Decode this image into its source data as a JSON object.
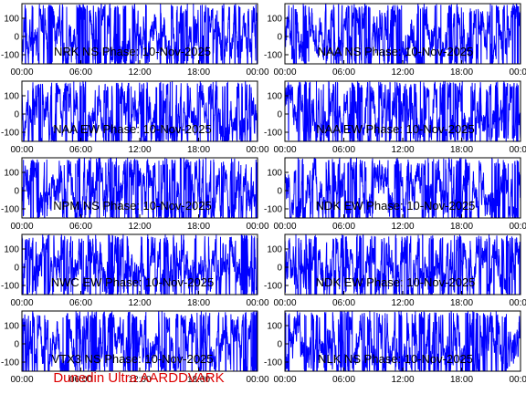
{
  "figure": {
    "credit": "Dunedin Ultra AARDDVARK",
    "credit_color": "#dd0000",
    "trace_color": "#0000ff",
    "axis_color": "#000000"
  },
  "chart_data": [
    {
      "type": "line",
      "title": "NRK NS Phase: 10-Nov-2025",
      "xlabel": "",
      "ylabel": "",
      "xlim": [
        "00:00",
        "24:00"
      ],
      "ylim": [
        -150,
        180
      ],
      "x_ticks": [
        "00:00",
        "06:00",
        "12:00",
        "18:00",
        "00:00"
      ],
      "y_ticks": [
        100,
        0,
        -100
      ],
      "y_range_of_trace": [
        -180,
        180
      ],
      "grid": false
    },
    {
      "type": "line",
      "title": "NAA NS Phase: 10-Nov-2025",
      "xlabel": "",
      "ylabel": "",
      "xlim": [
        "00:00",
        "24:00"
      ],
      "ylim": [
        -150,
        180
      ],
      "x_ticks": [
        "00:00",
        "06:00",
        "12:00",
        "18:00",
        "00:00"
      ],
      "y_ticks": [
        100,
        0,
        -100
      ],
      "y_range_of_trace": [
        -180,
        180
      ],
      "grid": false
    },
    {
      "type": "line",
      "title": "NAA EW Phase: 10-Nov-2025",
      "xlabel": "",
      "ylabel": "",
      "xlim": [
        "00:00",
        "24:00"
      ],
      "ylim": [
        -150,
        180
      ],
      "x_ticks": [
        "00:00",
        "06:00",
        "12:00",
        "18:00",
        "00:00"
      ],
      "y_ticks": [
        100,
        0,
        -100
      ],
      "y_range_of_trace": [
        -180,
        180
      ],
      "grid": false
    },
    {
      "type": "line",
      "title": "NAA EW Phase: 10-Nov-2025",
      "xlabel": "",
      "ylabel": "",
      "xlim": [
        "00:00",
        "24:00"
      ],
      "ylim": [
        -150,
        180
      ],
      "x_ticks": [
        "00:00",
        "06:00",
        "12:00",
        "18:00",
        "00:00"
      ],
      "y_ticks": [
        100,
        0,
        -100
      ],
      "y_range_of_trace": [
        -180,
        180
      ],
      "grid": false
    },
    {
      "type": "line",
      "title": "NPM NS Phase: 10-Nov-2025",
      "xlabel": "",
      "ylabel": "",
      "xlim": [
        "00:00",
        "24:00"
      ],
      "ylim": [
        -150,
        180
      ],
      "x_ticks": [
        "00:00",
        "06:00",
        "12:00",
        "18:00",
        "00:00"
      ],
      "y_ticks": [
        100,
        0,
        -100
      ],
      "y_range_of_trace": [
        -180,
        180
      ],
      "grid": false
    },
    {
      "type": "line",
      "title": "NDK EW Phase: 10-Nov-2025",
      "xlabel": "",
      "ylabel": "",
      "xlim": [
        "00:00",
        "24:00"
      ],
      "ylim": [
        -150,
        180
      ],
      "x_ticks": [
        "00:00",
        "06:00",
        "12:00",
        "18:00",
        "00:00"
      ],
      "y_ticks": [
        100,
        0,
        -100
      ],
      "y_range_of_trace": [
        -180,
        180
      ],
      "grid": false
    },
    {
      "type": "line",
      "title": "NWC EW Phase: 10-Nov-2025",
      "xlabel": "",
      "ylabel": "",
      "xlim": [
        "00:00",
        "24:00"
      ],
      "ylim": [
        -150,
        180
      ],
      "x_ticks": [
        "00:00",
        "06:00",
        "12:00",
        "18:00",
        "00:00"
      ],
      "y_ticks": [
        100,
        0,
        -100
      ],
      "y_range_of_trace": [
        -180,
        180
      ],
      "grid": false
    },
    {
      "type": "line",
      "title": "NDK EW Phase: 10-Nov-2025",
      "xlabel": "",
      "ylabel": "",
      "xlim": [
        "00:00",
        "24:00"
      ],
      "ylim": [
        -150,
        180
      ],
      "x_ticks": [
        "00:00",
        "06:00",
        "12:00",
        "18:00",
        "00:00"
      ],
      "y_ticks": [
        100,
        0,
        -100
      ],
      "y_range_of_trace": [
        -180,
        180
      ],
      "grid": false
    },
    {
      "type": "line",
      "title": "VTX3 NS Phase: 10-Nov-2025",
      "xlabel": "",
      "ylabel": "",
      "xlim": [
        "00:00",
        "24:00"
      ],
      "ylim": [
        -150,
        180
      ],
      "x_ticks": [
        "00:00",
        "06:00",
        "12:00",
        "18:00",
        "00:00"
      ],
      "y_ticks": [
        100,
        0,
        -100
      ],
      "y_range_of_trace": [
        -180,
        180
      ],
      "grid": false
    },
    {
      "type": "line",
      "title": "NLK NS Phase: 10-Nov-2025",
      "xlabel": "",
      "ylabel": "",
      "xlim": [
        "00:00",
        "24:00"
      ],
      "ylim": [
        -150,
        180
      ],
      "x_ticks": [
        "00:00",
        "06:00",
        "12:00",
        "18:00",
        "00:00"
      ],
      "y_ticks": [
        100,
        0,
        -100
      ],
      "y_range_of_trace": [
        -180,
        180
      ],
      "grid": false
    }
  ]
}
